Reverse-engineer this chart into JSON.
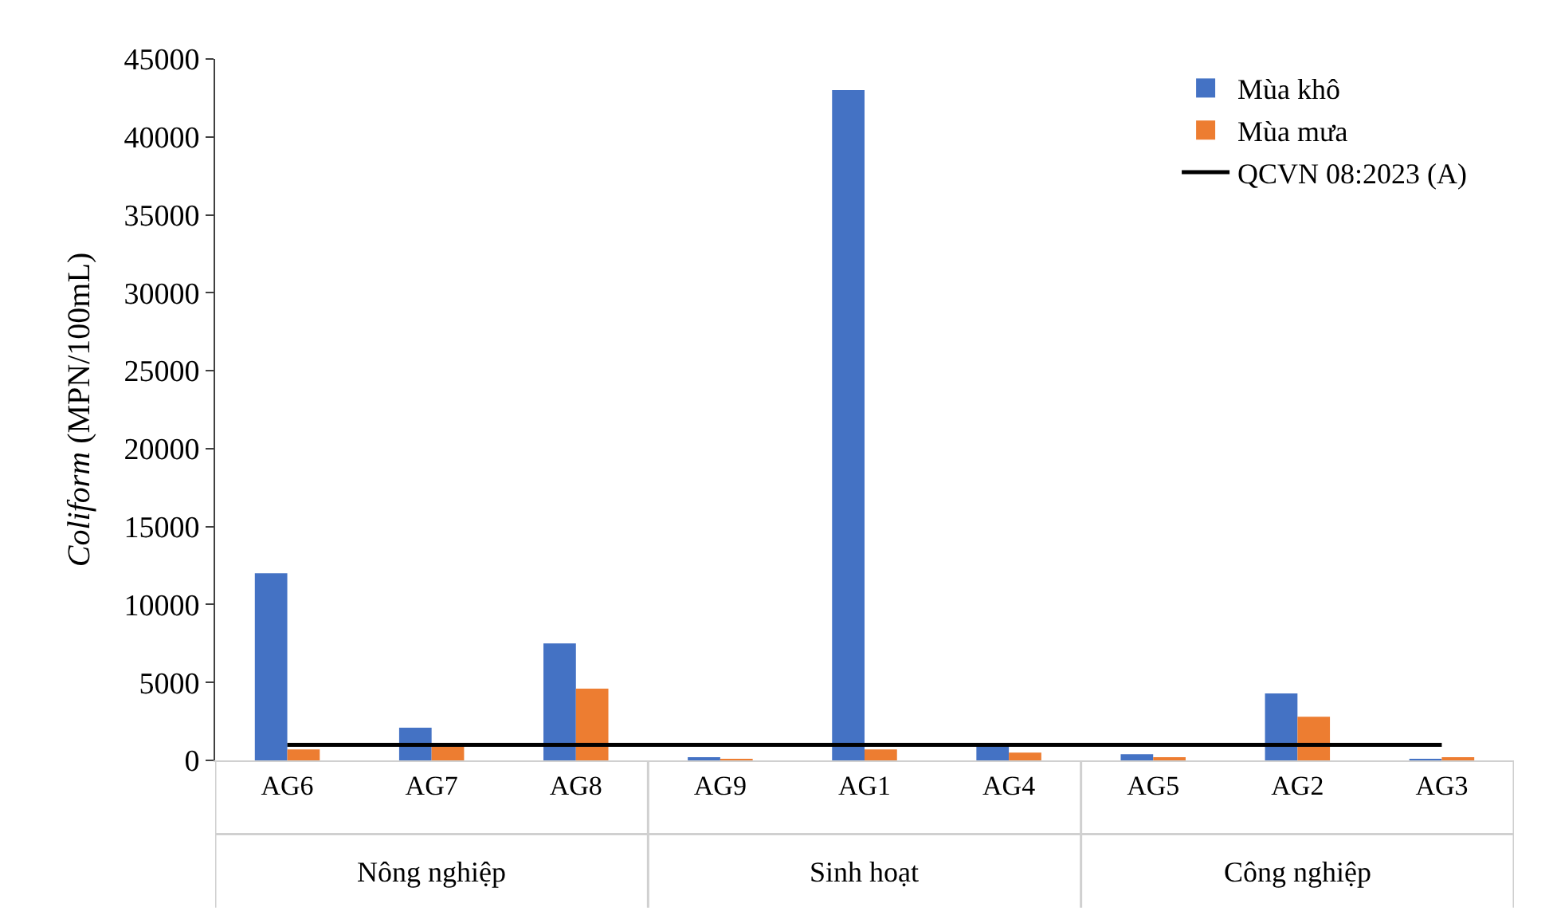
{
  "chart_data": {
    "type": "bar",
    "ylabel": "Coliform (MPN/100mL)",
    "categories": [
      "AG6",
      "AG7",
      "AG8",
      "AG9",
      "AG1",
      "AG4",
      "AG5",
      "AG2",
      "AG3"
    ],
    "series": [
      {
        "name": "Mùa khô",
        "color": "#4472c4",
        "values": [
          12000,
          2100,
          7500,
          200,
          43000,
          900,
          400,
          4300,
          100
        ]
      },
      {
        "name": "Mùa mưa",
        "color": "#ed7d31",
        "values": [
          700,
          1100,
          4600,
          100,
          700,
          500,
          200,
          2800,
          200
        ]
      },
      {
        "name": "QCVN 08:2023 (A)",
        "type": "line",
        "color": "#000000",
        "line_style": "solid",
        "values": [
          1000,
          1000,
          1000,
          1000,
          1000,
          1000,
          1000,
          1000,
          1000
        ]
      }
    ],
    "ylim": [
      0,
      45000
    ],
    "yticks": [
      0,
      5000,
      10000,
      15000,
      20000,
      25000,
      30000,
      35000,
      40000,
      45000
    ],
    "grid": false,
    "legend": "top right",
    "marker": "none",
    "annotations": [
      "Nông nghiệp",
      "Sinh hoạt",
      "Công nghiệp"
    ]
  }
}
